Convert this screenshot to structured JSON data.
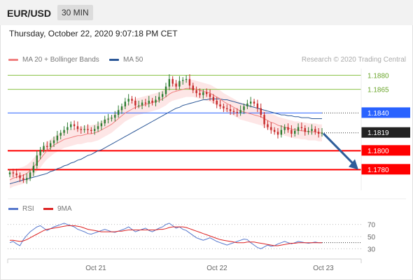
{
  "header": {
    "pair": "EUR/USD",
    "timeframe": "30 MIN"
  },
  "datetime": "Thursday, October 22, 2020 9:07:18 PM CET",
  "legend": {
    "ma20_label": "MA 20 + Bollinger Bands",
    "ma50_label": "MA 50",
    "credit": "Research © 2020 Trading Central"
  },
  "rsi_legend": {
    "rsi_label": "RSI",
    "ma9_label": "9MA"
  },
  "colors": {
    "ma20": "#f08080",
    "ma50": "#2b5797",
    "bollinger_fill": "#fde0e0",
    "up_candle": "#2e7d32",
    "down_candle": "#c62828",
    "resistance_green": "#8bc34a",
    "current_level": "#2962ff",
    "support_red": "#ff0000",
    "current_price": "#222222",
    "arrow": "#2e5d9a",
    "rsi": "#5577cc",
    "rsi_ma": "#dd2222"
  },
  "chart_data": {
    "type": "candlestick",
    "symbol": "EUR/USD",
    "timeframe": "30 MIN",
    "ylim": [
      1.1758,
      1.1887
    ],
    "price_levels": [
      {
        "label": "1.1880",
        "value": 1.188,
        "kind": "resistance"
      },
      {
        "label": "1.1865",
        "value": 1.1865,
        "kind": "resistance"
      },
      {
        "label": "1.1840",
        "value": 1.184,
        "kind": "pivot"
      },
      {
        "label": "1.1819",
        "value": 1.1819,
        "kind": "last-price"
      },
      {
        "label": "1.1800",
        "value": 1.18,
        "kind": "support"
      },
      {
        "label": "1.1780",
        "value": 1.178,
        "kind": "support"
      }
    ],
    "x_ticks": [
      "Oct 21",
      "Oct 22",
      "Oct 23"
    ],
    "closes": [
      1.1777,
      1.1776,
      1.1774,
      1.1771,
      1.1769,
      1.1771,
      1.1777,
      1.1784,
      1.1795,
      1.1801,
      1.1805,
      1.1804,
      1.1808,
      1.1811,
      1.1816,
      1.1819,
      1.1822,
      1.1825,
      1.1828,
      1.1826,
      1.1823,
      1.1822,
      1.1823,
      1.1822,
      1.1821,
      1.1823,
      1.1826,
      1.1829,
      1.1833,
      1.1834,
      1.1835,
      1.1838,
      1.1843,
      1.1847,
      1.1852,
      1.1855,
      1.1853,
      1.1848,
      1.1848,
      1.1851,
      1.185,
      1.1853,
      1.1851,
      1.1854,
      1.1857,
      1.186,
      1.1868,
      1.1876,
      1.1871,
      1.1868,
      1.1874,
      1.1875,
      1.1876,
      1.1869,
      1.1864,
      1.1861,
      1.1859,
      1.1862,
      1.186,
      1.1857,
      1.1853,
      1.1849,
      1.1847,
      1.1845,
      1.1844,
      1.1842,
      1.1841,
      1.184,
      1.1843,
      1.1847,
      1.185,
      1.1852,
      1.185,
      1.1845,
      1.1838,
      1.1828,
      1.1825,
      1.1822,
      1.182,
      1.1817,
      1.1822,
      1.1825,
      1.1822,
      1.1818,
      1.1821,
      1.1825,
      1.1824,
      1.182,
      1.1821,
      1.1823,
      1.182,
      1.1818,
      1.1819
    ],
    "ma20": [
      1.1769,
      1.1771,
      1.1772,
      1.1773,
      1.1774,
      1.1776,
      1.1779,
      1.1783,
      1.1787,
      1.1791,
      1.1796,
      1.18,
      1.1803,
      1.1806,
      1.1808,
      1.181,
      1.1812,
      1.1813,
      1.1814,
      1.1815,
      1.1816,
      1.1816,
      1.1817,
      1.1818,
      1.1818,
      1.1819,
      1.182,
      1.1822,
      1.1824,
      1.1826,
      1.1828,
      1.1831,
      1.1834,
      1.1837,
      1.184,
      1.1842,
      1.1844,
      1.1846,
      1.1847,
      1.1848,
      1.1849,
      1.185,
      1.1851,
      1.1852,
      1.1853,
      1.1855,
      1.1857,
      1.186,
      1.1862,
      1.1863,
      1.1864,
      1.1865,
      1.1866,
      1.1866,
      1.1866,
      1.1865,
      1.1864,
      1.1863,
      1.1862,
      1.1861,
      1.1859,
      1.1857,
      1.1855,
      1.1852,
      1.185,
      1.1848,
      1.1846,
      1.1844,
      1.1842,
      1.1841,
      1.184,
      1.1839,
      1.1838,
      1.1837,
      1.1836,
      1.1834,
      1.1832,
      1.183,
      1.1829,
      1.1827,
      1.1826,
      1.1825,
      1.1824,
      1.1823,
      1.1822,
      1.1822,
      1.1821,
      1.1821,
      1.182,
      1.182,
      1.182,
      1.1819,
      1.1819
    ],
    "ma50": [
      1.1765,
      1.1766,
      1.1767,
      1.1768,
      1.1769,
      1.177,
      1.1771,
      1.1772,
      1.1773,
      1.1774,
      1.1775,
      1.1776,
      1.1778,
      1.1779,
      1.1781,
      1.1782,
      1.1784,
      1.1785,
      1.1787,
      1.1788,
      1.179,
      1.1791,
      1.1793,
      1.1795,
      1.1796,
      1.1798,
      1.18,
      1.1801,
      1.1803,
      1.1805,
      1.1807,
      1.1809,
      1.1811,
      1.1813,
      1.1815,
      1.1817,
      1.1819,
      1.1821,
      1.1823,
      1.1825,
      1.1827,
      1.1829,
      1.1831,
      1.1833,
      1.1835,
      1.1837,
      1.1839,
      1.1841,
      1.1843,
      1.1845,
      1.1846,
      1.1848,
      1.1849,
      1.185,
      1.1851,
      1.1852,
      1.1853,
      1.1854,
      1.1854,
      1.1855,
      1.1855,
      1.1855,
      1.1855,
      1.1854,
      1.1854,
      1.1853,
      1.1852,
      1.1851,
      1.185,
      1.1849,
      1.1848,
      1.1847,
      1.1846,
      1.1845,
      1.1844,
      1.1843,
      1.1842,
      1.1841,
      1.184,
      1.1839,
      1.1838,
      1.1838,
      1.1837,
      1.1837,
      1.1836,
      1.1836,
      1.1835,
      1.1835,
      1.1835,
      1.1834,
      1.1834,
      1.1834,
      1.1834
    ],
    "bollinger_width": 0.0009,
    "forecast_target": 1.178,
    "rsi": {
      "ticks": [
        "70",
        "50",
        "30"
      ],
      "ylim": [
        20,
        80
      ],
      "rsi_values": [
        40,
        42,
        38,
        35,
        45,
        52,
        58,
        62,
        66,
        68,
        64,
        60,
        63,
        66,
        68,
        70,
        72,
        70,
        68,
        66,
        62,
        60,
        58,
        55,
        54,
        56,
        58,
        60,
        62,
        60,
        58,
        57,
        59,
        61,
        63,
        66,
        62,
        58,
        60,
        62,
        64,
        60,
        58,
        61,
        64,
        66,
        70,
        72,
        68,
        64,
        66,
        62,
        60,
        56,
        52,
        48,
        46,
        44,
        46,
        48,
        45,
        42,
        40,
        38,
        36,
        38,
        40,
        42,
        44,
        46,
        45,
        40,
        36,
        32,
        30,
        33,
        36,
        34,
        35,
        38,
        40,
        42,
        40,
        38,
        40,
        42,
        41,
        40,
        39,
        40,
        41,
        40,
        40
      ],
      "ma9_values": [
        44,
        44,
        43,
        42,
        43,
        45,
        48,
        51,
        54,
        57,
        60,
        62,
        63,
        64,
        65,
        66,
        67,
        68,
        68,
        68,
        67,
        66,
        64,
        62,
        61,
        60,
        59,
        58,
        58,
        58,
        58,
        58,
        59,
        59,
        60,
        61,
        61,
        61,
        61,
        61,
        61,
        61,
        61,
        61,
        62,
        62,
        63,
        65,
        66,
        66,
        66,
        66,
        65,
        63,
        61,
        59,
        57,
        55,
        53,
        51,
        49,
        47,
        45,
        44,
        43,
        42,
        41,
        40,
        40,
        40,
        41,
        41,
        41,
        40,
        39,
        38,
        37,
        36,
        35,
        35,
        36,
        37,
        38,
        39,
        39,
        40,
        40,
        40,
        40,
        40,
        40,
        40,
        40
      ]
    }
  }
}
